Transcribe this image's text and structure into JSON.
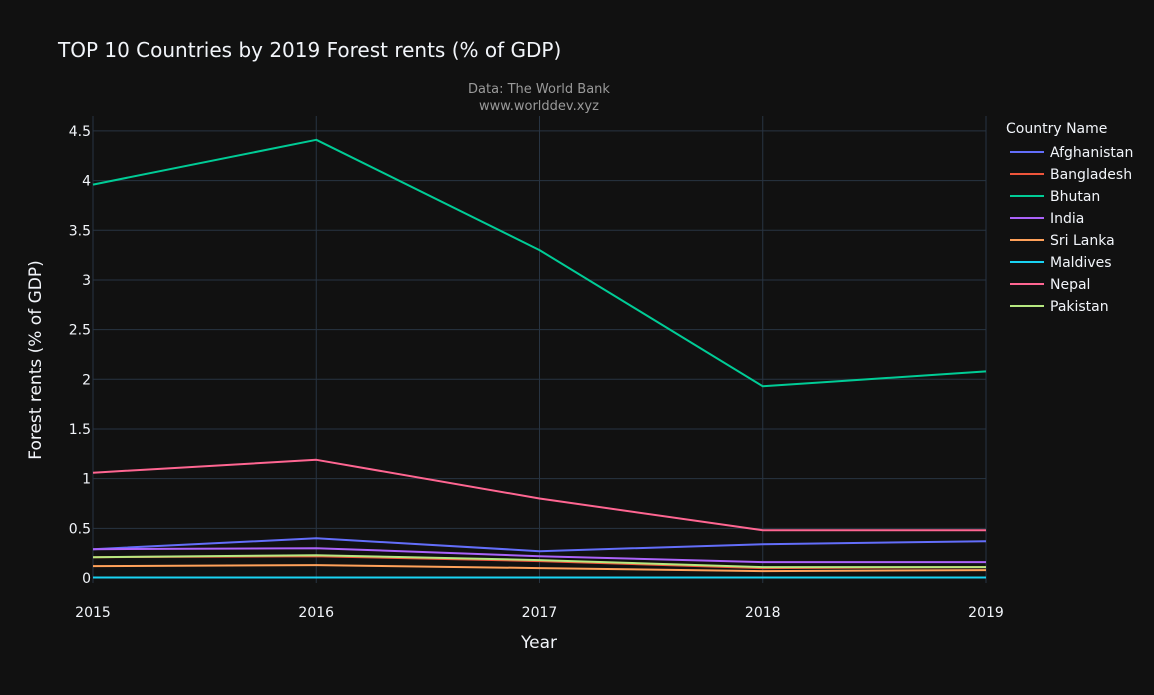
{
  "chart_data": {
    "type": "line",
    "title": "TOP 10 Countries by 2019 Forest rents (% of GDP)",
    "annotation": [
      "Data: The World Bank",
      "www.worlddev.xyz"
    ],
    "xlabel": "Year",
    "ylabel": "Forest rents (% of GDP)",
    "x": [
      2015,
      2016,
      2017,
      2018,
      2019
    ],
    "xlim": [
      2015,
      2019
    ],
    "ylim": [
      -0.05,
      4.65
    ],
    "yticks": [
      0,
      0.5,
      1,
      1.5,
      2,
      2.5,
      3,
      3.5,
      4,
      4.5
    ],
    "ytick_labels": [
      "0",
      "0.5",
      "1",
      "1.5",
      "2",
      "2.5",
      "3",
      "3.5",
      "4",
      "4.5"
    ],
    "xtick_labels": [
      "2015",
      "2016",
      "2017",
      "2018",
      "2019"
    ],
    "grid": true,
    "legend_title": "Country Name",
    "legend_position": "right",
    "series": [
      {
        "name": "Afghanistan",
        "color": "#636efa",
        "values": [
          0.29,
          0.4,
          0.27,
          0.34,
          0.37
        ]
      },
      {
        "name": "Bangladesh",
        "color": "#EF553B",
        "values": [
          0.21,
          0.22,
          0.17,
          0.1,
          0.11
        ]
      },
      {
        "name": "Bhutan",
        "color": "#00cc96",
        "values": [
          3.96,
          4.41,
          3.3,
          1.93,
          2.08
        ]
      },
      {
        "name": "India",
        "color": "#ab63fa",
        "values": [
          0.29,
          0.3,
          0.22,
          0.16,
          0.16
        ]
      },
      {
        "name": "Sri Lanka",
        "color": "#FFA15A",
        "values": [
          0.12,
          0.13,
          0.1,
          0.07,
          0.08
        ]
      },
      {
        "name": "Maldives",
        "color": "#19d3f3",
        "values": [
          0.005,
          0.005,
          0.005,
          0.005,
          0.005
        ]
      },
      {
        "name": "Nepal",
        "color": "#FF6692",
        "values": [
          1.06,
          1.19,
          0.8,
          0.48,
          0.48
        ]
      },
      {
        "name": "Pakistan",
        "color": "#B6E880",
        "values": [
          0.21,
          0.23,
          0.18,
          0.11,
          0.11
        ]
      }
    ]
  }
}
